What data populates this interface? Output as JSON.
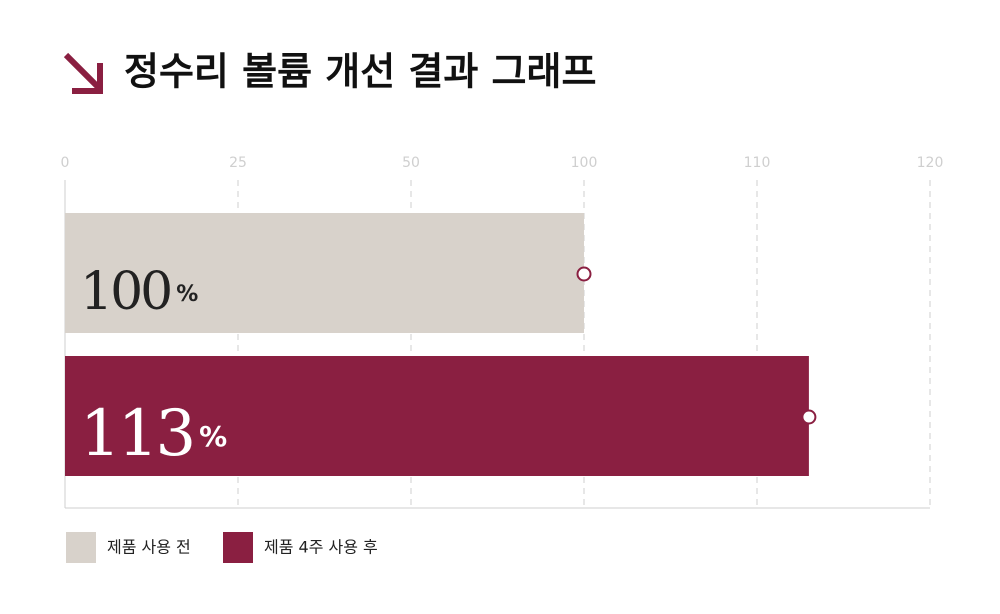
{
  "chart_data": {
    "type": "bar",
    "orientation": "horizontal",
    "title": "정수리 볼륨 개선 결과 그래프",
    "series": [
      {
        "name": "제품 사용 전",
        "color": "#d8d2cb",
        "label_color": "#222222",
        "values": [
          100
        ],
        "value_labels": [
          "100%"
        ]
      },
      {
        "name": "제품 4주 사용 후",
        "color": "#8a1f41",
        "label_color": "#ffffff",
        "values": [
          113
        ],
        "value_labels": [
          "113%"
        ]
      }
    ],
    "xlim": [
      0,
      120
    ],
    "xticks": [
      0,
      25,
      50,
      100,
      110,
      120
    ],
    "grid": true,
    "legend": "bottom-left"
  }
}
